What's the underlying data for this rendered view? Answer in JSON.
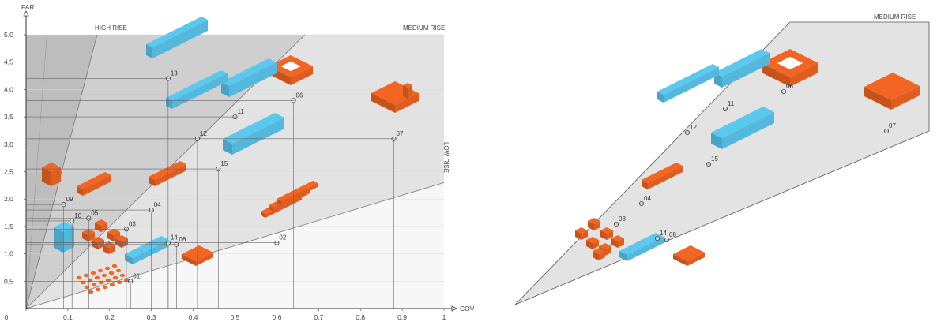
{
  "chart_data": [
    {
      "type": "scatter",
      "xlabel": "COV",
      "ylabel": "FAR",
      "xlim": [
        0,
        1
      ],
      "ylim": [
        0,
        5
      ],
      "x_ticks": [
        "0",
        "0,1",
        "0,2",
        "0,3",
        "0,4",
        "0,5",
        "0,6",
        "0,7",
        "0,8",
        "0,9",
        "1"
      ],
      "y_ticks": [
        "0,5",
        "1,0",
        "1,5",
        "2,0",
        "2,5",
        "3,0",
        "3,5",
        "4,0",
        "4,5",
        "5,0"
      ],
      "zones": [
        "HIGH RISE",
        "MEDIUM RISE",
        "LOW RISE"
      ],
      "points": [
        {
          "label": "01",
          "x": 0.25,
          "y": 0.5,
          "color": "#f26522"
        },
        {
          "label": "02",
          "x": 0.6,
          "y": 1.2,
          "color": "#f26522"
        },
        {
          "label": "03",
          "x": 0.24,
          "y": 1.45,
          "color": "#f26522"
        },
        {
          "label": "04",
          "x": 0.3,
          "y": 1.8,
          "color": "#f26522"
        },
        {
          "label": "05",
          "x": 0.15,
          "y": 1.65,
          "color": "#f26522"
        },
        {
          "label": "06",
          "x": 0.64,
          "y": 3.8,
          "color": "#f26522"
        },
        {
          "label": "07",
          "x": 0.88,
          "y": 3.1,
          "color": "#f26522"
        },
        {
          "label": "08",
          "x": 0.36,
          "y": 1.17,
          "color": "#f26522"
        },
        {
          "label": "09",
          "x": 0.09,
          "y": 1.9,
          "color": "#f26522"
        },
        {
          "label": "10",
          "x": 0.11,
          "y": 1.6,
          "color": "#5bc8f0"
        },
        {
          "label": "11",
          "x": 0.5,
          "y": 3.5,
          "color": "#5bc8f0"
        },
        {
          "label": "12",
          "x": 0.41,
          "y": 3.1,
          "color": "#5bc8f0"
        },
        {
          "label": "13",
          "x": 0.34,
          "y": 4.2,
          "color": "#5bc8f0"
        },
        {
          "label": "14",
          "x": 0.34,
          "y": 1.2,
          "color": "#5bc8f0"
        },
        {
          "label": "15",
          "x": 0.46,
          "y": 2.55,
          "color": "#5bc8f0"
        }
      ]
    },
    {
      "type": "scatter",
      "zones": [
        "MEDIUM RISE"
      ],
      "points": [
        {
          "label": "03"
        },
        {
          "label": "04"
        },
        {
          "label": "06"
        },
        {
          "label": "07"
        },
        {
          "label": "08"
        },
        {
          "label": "11"
        },
        {
          "label": "12"
        },
        {
          "label": "14"
        },
        {
          "label": "15"
        }
      ]
    }
  ]
}
